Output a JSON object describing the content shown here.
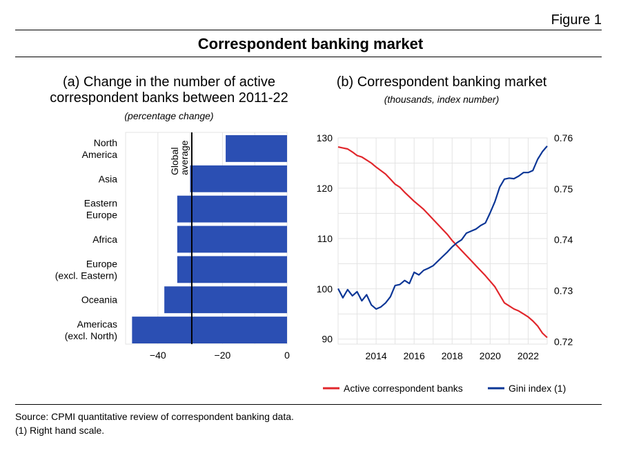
{
  "header": {
    "figure_label": "Figure 1",
    "title": "Correspondent banking market"
  },
  "panel_a": {
    "title_line1": "(a) Change in the number of active",
    "title_line2": "correspondent banks between 2011-22",
    "subtitle": "(percentage change)",
    "ref_label_line1": "Global",
    "ref_label_line2": "average"
  },
  "panel_b": {
    "title": "(b) Correspondent banking market",
    "subtitle": "(thousands, index number)",
    "legend": [
      {
        "label": "Active correspondent banks",
        "color": "#e1262b"
      },
      {
        "label": "Gini index (1)",
        "color": "#0b3696"
      }
    ]
  },
  "footer": {
    "source": "Source: CPMI quantitative review of correspondent banking data.",
    "note": "(1) Right hand scale."
  },
  "colors": {
    "bar": "#2b4fb3",
    "red_series": "#e1262b",
    "blue_series": "#0b3696",
    "grid": "#e3e3e3"
  },
  "chart_data": [
    {
      "type": "bar",
      "orientation": "horizontal",
      "categories": [
        [
          "North",
          "America"
        ],
        [
          "Asia"
        ],
        [
          "Eastern",
          "Europe"
        ],
        [
          "Africa"
        ],
        [
          "Europe",
          "(excl. Eastern)"
        ],
        [
          "Oceania"
        ],
        [
          "Americas",
          "(excl. North)"
        ]
      ],
      "values": [
        -19,
        -30,
        -34,
        -34,
        -34,
        -38,
        -48
      ],
      "reference_line": {
        "value": -29.5,
        "label": "Global average"
      },
      "xlim": [
        -50,
        0
      ],
      "xticks": [
        -40,
        -20,
        0
      ],
      "xtick_labels": [
        "−40",
        "−20",
        "0"
      ],
      "grid": true
    },
    {
      "type": "line",
      "dual_axis": true,
      "xlim": [
        2012,
        2023
      ],
      "xticks": [
        2014,
        2016,
        2018,
        2020,
        2022
      ],
      "y_left": {
        "lim": [
          89,
          130
        ],
        "ticks": [
          90,
          100,
          110,
          120,
          130
        ]
      },
      "y_right": {
        "lim": [
          0.7195,
          0.76
        ],
        "ticks": [
          0.72,
          0.73,
          0.74,
          0.75,
          0.76
        ],
        "tick_labels": [
          "0.72",
          "0.73",
          "0.74",
          "0.75",
          "0.76"
        ]
      },
      "grid": true,
      "legend_position": "bottom",
      "series": [
        {
          "name": "Active correspondent banks",
          "axis": "left",
          "color": "#e1262b",
          "x": [
            2012.0,
            2012.25,
            2012.5,
            2012.75,
            2013.0,
            2013.25,
            2013.5,
            2013.75,
            2014.0,
            2014.25,
            2014.5,
            2014.75,
            2015.0,
            2015.25,
            2015.5,
            2015.75,
            2016.0,
            2016.25,
            2016.5,
            2016.75,
            2017.0,
            2017.25,
            2017.5,
            2017.75,
            2018.0,
            2018.25,
            2018.5,
            2018.75,
            2019.0,
            2019.25,
            2019.5,
            2019.75,
            2020.0,
            2020.25,
            2020.5,
            2020.75,
            2021.0,
            2021.25,
            2021.5,
            2021.75,
            2022.0,
            2022.25,
            2022.5,
            2022.75,
            2023.0
          ],
          "y": [
            128.2,
            128.0,
            127.8,
            127.2,
            126.5,
            126.2,
            125.6,
            125.0,
            124.2,
            123.5,
            122.8,
            121.8,
            120.8,
            120.2,
            119.2,
            118.3,
            117.4,
            116.6,
            115.8,
            114.8,
            113.8,
            112.8,
            111.8,
            110.8,
            109.6,
            108.6,
            107.6,
            106.6,
            105.6,
            104.6,
            103.6,
            102.6,
            101.5,
            100.4,
            98.8,
            97.2,
            96.6,
            96.0,
            95.6,
            95.0,
            94.4,
            93.6,
            92.6,
            91.2,
            90.3
          ]
        },
        {
          "name": "Gini index (1)",
          "axis": "right",
          "color": "#0b3696",
          "x": [
            2012.0,
            2012.25,
            2012.5,
            2012.75,
            2013.0,
            2013.25,
            2013.5,
            2013.75,
            2014.0,
            2014.25,
            2014.5,
            2014.75,
            2015.0,
            2015.25,
            2015.5,
            2015.75,
            2016.0,
            2016.25,
            2016.5,
            2016.75,
            2017.0,
            2017.25,
            2017.5,
            2017.75,
            2018.0,
            2018.25,
            2018.5,
            2018.75,
            2019.0,
            2019.25,
            2019.5,
            2019.75,
            2020.0,
            2020.25,
            2020.5,
            2020.75,
            2021.0,
            2021.25,
            2021.5,
            2021.75,
            2022.0,
            2022.25,
            2022.5,
            2022.75,
            2023.0
          ],
          "y": [
            0.7304,
            0.7286,
            0.7302,
            0.729,
            0.7298,
            0.728,
            0.7292,
            0.7272,
            0.7264,
            0.7268,
            0.7276,
            0.7288,
            0.731,
            0.7312,
            0.732,
            0.7314,
            0.7336,
            0.7331,
            0.734,
            0.7344,
            0.7349,
            0.7358,
            0.7367,
            0.7376,
            0.7386,
            0.7394,
            0.74,
            0.7413,
            0.7417,
            0.7421,
            0.7428,
            0.7433,
            0.7453,
            0.7475,
            0.7503,
            0.7519,
            0.7521,
            0.752,
            0.7525,
            0.7532,
            0.7532,
            0.7536,
            0.7558,
            0.7573,
            0.7584
          ]
        }
      ]
    }
  ]
}
